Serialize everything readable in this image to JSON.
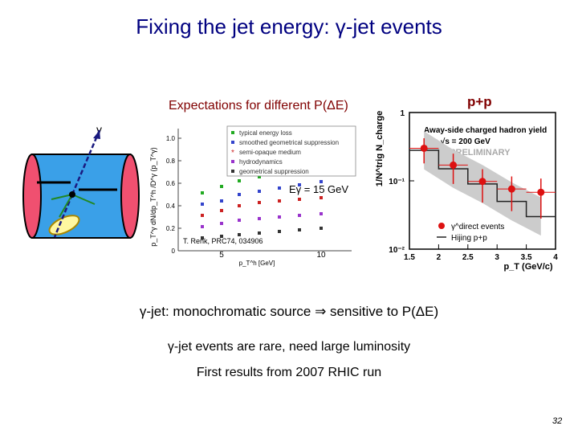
{
  "slide": {
    "title": "Fixing the jet energy: γ-jet events",
    "subtitle_left": "Expectations for different P(ΔE)",
    "subtitle_right": "p+p",
    "gamma_label": "γ",
    "bullets": [
      "γ-jet: monochromatic source ⇒ sensitive to P(ΔE)",
      "γ-jet events are rare, need large luminosity",
      "First results from 2007 RHIC run"
    ],
    "page_number": "32"
  },
  "left_plot": {
    "ylabel": "p_T^γ dN/dp_T^h /D^γ (p_T^γ)",
    "xlabel": "p_T^h [GeV]",
    "y_ticks": [
      "0",
      "0.2",
      "0.4",
      "0.6",
      "0.8",
      "1.0"
    ],
    "x_ticks": [
      "5",
      "10"
    ],
    "legend": [
      {
        "label": "typical energy loss",
        "color": "#22aa22",
        "symbol": "square"
      },
      {
        "label": "smoothed geometrical suppression",
        "color": "#3344cc",
        "symbol": "square"
      },
      {
        "label": "semi-opaque medium",
        "color": "#cc2222",
        "symbol": "star"
      },
      {
        "label": "hydrodynamics",
        "color": "#9933cc",
        "symbol": "square"
      },
      {
        "label": "geometrical suppression",
        "color": "#333333",
        "symbol": "square"
      }
    ],
    "egamma_label": "Eγ = 15 GeV",
    "reference": "T. Renk, PRC74, 034906"
  },
  "chart_data": {
    "type": "scatter",
    "title": "Away-side charged hadron yield",
    "subtitle": "p+p √s = 200 GeV",
    "watermark": "STAR PRELIMINARY",
    "ylabel": "1/N^trig N_charge",
    "xlabel": "p_T (GeV/c)",
    "y_scale": "log",
    "ylim": [
      0.01,
      1
    ],
    "xlim": [
      1.5,
      4
    ],
    "y_ticks": [
      "1",
      "10⁻¹",
      "10⁻²"
    ],
    "x_ticks": [
      "1.5",
      "2",
      "2.5",
      "3",
      "3.5",
      "4"
    ],
    "series": [
      {
        "name": "γ^direct events",
        "color": "#dd1111",
        "x": [
          1.75,
          2.25,
          2.75,
          3.25,
          3.75
        ],
        "y": [
          0.3,
          0.17,
          0.098,
          0.076,
          0.068
        ],
        "err": [
          0.12,
          0.08,
          0.05,
          0.04,
          0.04
        ]
      },
      {
        "name": "Hijing p+p",
        "color": "#222222",
        "x": [
          1.75,
          2.25,
          2.75,
          3.25,
          3.75
        ],
        "y": [
          0.28,
          0.15,
          0.09,
          0.05,
          0.03
        ]
      }
    ]
  }
}
